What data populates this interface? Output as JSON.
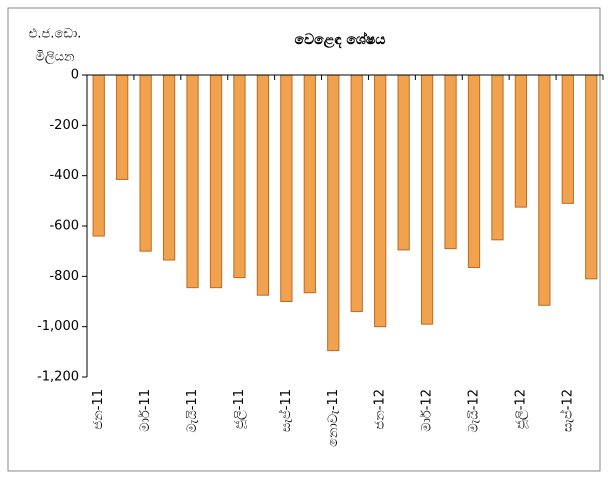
{
  "chart_data": {
    "type": "bar",
    "title": "වෙළෙඳ ශේෂය",
    "y_label_lines": [
      "එ.ජ.ඩො.",
      "මිලියන"
    ],
    "categories": [
      "ජන-11",
      null,
      "මාර්-11",
      null,
      "මැයි-11",
      null,
      "ජූලි-11",
      null,
      "සැප්-11",
      null,
      "නොවැ-11",
      null,
      "ජන-12",
      null,
      "මාර්-12",
      null,
      "මැයි-12",
      null,
      "ජූලි-12",
      null,
      "සැප්-12",
      null
    ],
    "values": [
      -640,
      -415,
      -700,
      -735,
      -845,
      -845,
      -805,
      -875,
      -900,
      -865,
      -1095,
      -940,
      -1000,
      -695,
      -990,
      -690,
      -765,
      -655,
      -525,
      -915,
      -510,
      -810
    ],
    "color": "#f0a24e",
    "edge_color": "#c06a1e",
    "ylim": [
      -1200,
      0
    ],
    "yticks": [
      0,
      -200,
      -400,
      -600,
      -800,
      {
        "value": -1000,
        "label": "-1,000"
      },
      {
        "value": -1200,
        "label": "-1,200"
      }
    ],
    "grid": false
  }
}
